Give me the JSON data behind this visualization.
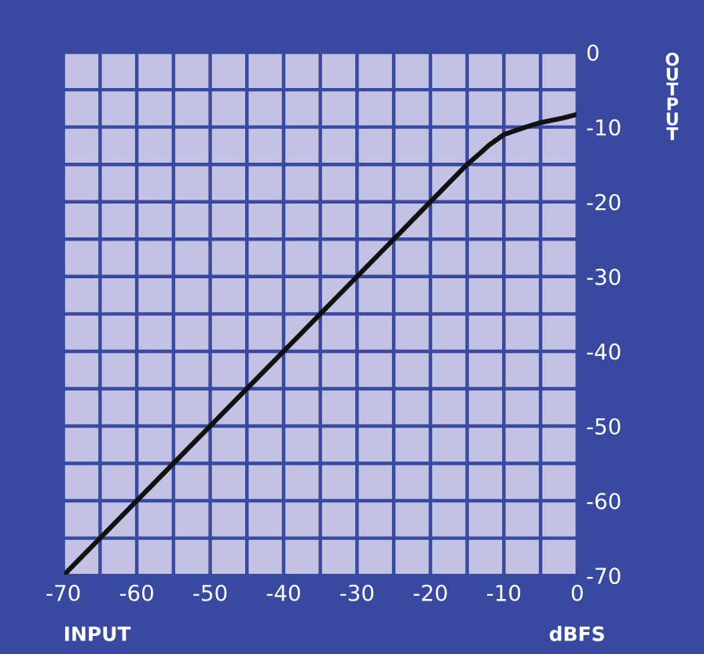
{
  "chart_data": {
    "type": "line",
    "xlabel": "INPUT",
    "ylabel": "OUTPUT",
    "annotations": [
      "dBFS"
    ],
    "x": [
      -70,
      -20,
      -17,
      -15,
      -13,
      -12,
      -10,
      -7,
      -5,
      -2,
      0
    ],
    "series": [
      {
        "color": "#111111",
        "values": [
          -70,
          -20,
          -17,
          -15,
          -13.3,
          -12.4,
          -11,
          -10,
          -9.4,
          -8.8,
          -8.3
        ]
      }
    ],
    "xlim": [
      -70,
      0
    ],
    "ylim": [
      -70,
      0
    ],
    "xticks": [
      -70,
      {
        "value": -65,
        "label": null
      },
      -60,
      {
        "value": -55,
        "label": null
      },
      -50,
      {
        "value": -45,
        "label": null
      },
      -40,
      {
        "value": -35,
        "label": null
      },
      -30,
      {
        "value": -25,
        "label": null
      },
      -20,
      {
        "value": -15,
        "label": null
      },
      -10,
      {
        "value": -5,
        "label": null
      },
      0
    ],
    "yticks": [
      -70,
      {
        "value": -65,
        "label": null
      },
      -60,
      {
        "value": -55,
        "label": null
      },
      -50,
      {
        "value": -45,
        "label": null
      },
      -40,
      {
        "value": -35,
        "label": null
      },
      -30,
      {
        "value": -25,
        "label": null
      },
      -20,
      {
        "value": -15,
        "label": null
      },
      -10,
      {
        "value": -5,
        "label": null
      },
      0
    ],
    "grid": true,
    "marker": "none",
    "line_style": "solid",
    "legend": false
  }
}
